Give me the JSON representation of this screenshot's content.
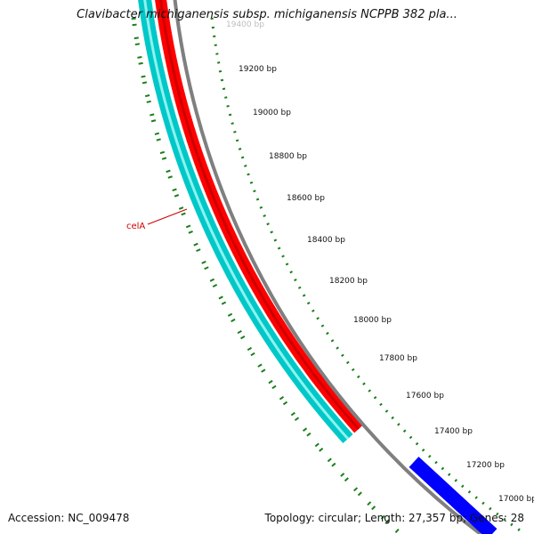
{
  "title": "Clavibacter michiganensis subsp. michiganensis NCPPB 382 pla...",
  "footer": {
    "accession": "Accession: NC_009478",
    "summary": "Topology: circular; Length: 27,357 bp; Genes: 28"
  },
  "plasmid": {
    "length_bp": 27357,
    "visible_window_bp": [
      16900,
      19450
    ],
    "tick_interval_bp": 200,
    "faded_tick_label": "19400 bp",
    "tick_labels": [
      "19200 bp",
      "19000 bp",
      "18800 bp",
      "18600 bp",
      "18400 bp",
      "18200 bp",
      "18000 bp",
      "17800 bp",
      "17600 bp",
      "17400 bp",
      "17200 bp",
      "17000 bp"
    ],
    "features": [
      {
        "name": "celA",
        "strand": "-",
        "color": "#00cccc",
        "track": "outer"
      },
      {
        "name": "",
        "strand": "+",
        "color": "#ff0000",
        "track": "inner"
      },
      {
        "name": "",
        "strand": "+",
        "color": "#0000ff",
        "track": "inner"
      }
    ],
    "gene_label": "celA",
    "colors": {
      "backbone": "#808080",
      "ticks": "#008000",
      "label": "#cc0000"
    }
  }
}
